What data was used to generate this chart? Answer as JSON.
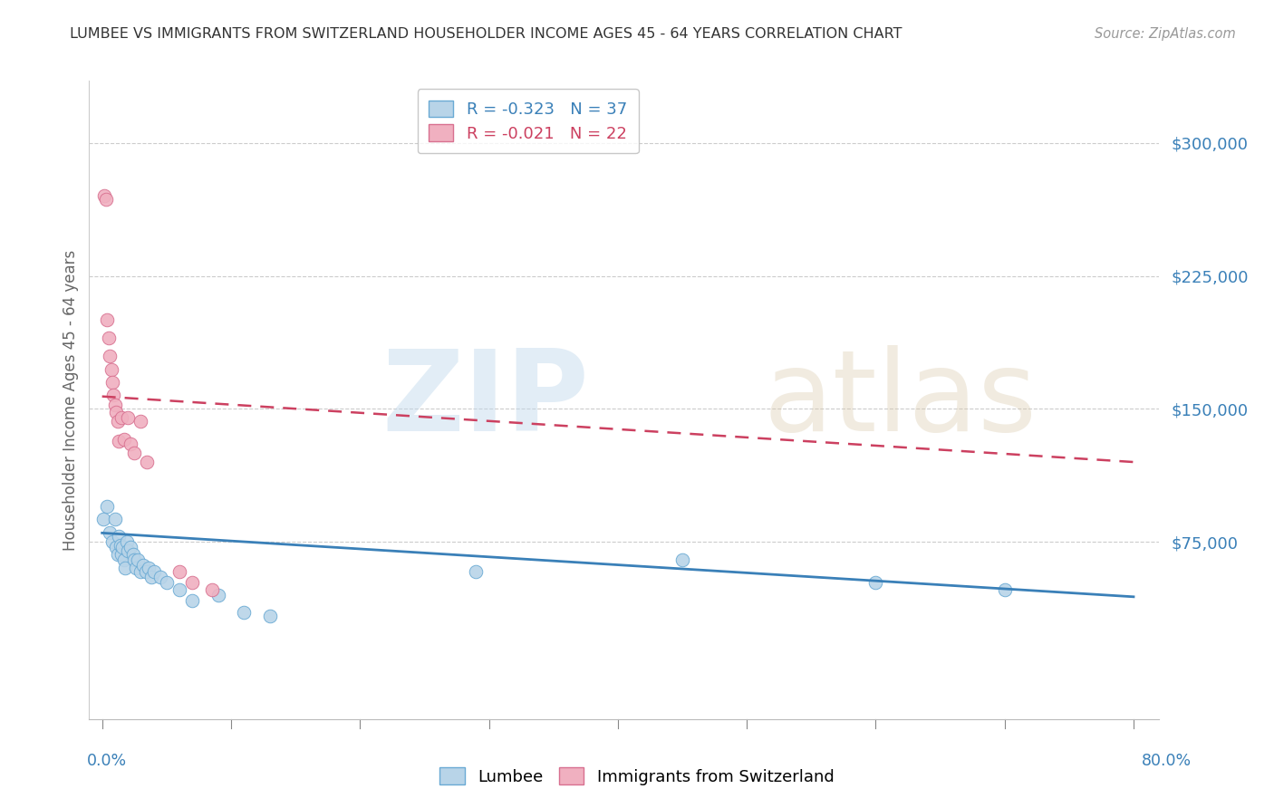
{
  "title": "LUMBEE VS IMMIGRANTS FROM SWITZERLAND HOUSEHOLDER INCOME AGES 45 - 64 YEARS CORRELATION CHART",
  "source": "Source: ZipAtlas.com",
  "ylabel": "Householder Income Ages 45 - 64 years",
  "lumbee_label": "Lumbee",
  "swiss_label": "Immigrants from Switzerland",
  "legend_lumbee": "R = -0.323   N = 37",
  "legend_swiss": "R = -0.021   N = 22",
  "lumbee_color": "#b8d4e8",
  "lumbee_edge_color": "#6aaad4",
  "swiss_color": "#f0b0c0",
  "swiss_edge_color": "#d87090",
  "lumbee_line_color": "#3a80b8",
  "swiss_line_color": "#cc4060",
  "ytick_vals": [
    0,
    75000,
    150000,
    225000,
    300000
  ],
  "ytick_labels": [
    "",
    "$75,000",
    "$150,000",
    "$225,000",
    "$300,000"
  ],
  "ylim": [
    -25000,
    335000
  ],
  "xlim": [
    -0.01,
    0.82
  ],
  "lumbee_x": [
    0.001,
    0.004,
    0.006,
    0.008,
    0.01,
    0.011,
    0.012,
    0.013,
    0.014,
    0.015,
    0.016,
    0.017,
    0.018,
    0.019,
    0.02,
    0.022,
    0.024,
    0.025,
    0.026,
    0.028,
    0.03,
    0.032,
    0.034,
    0.036,
    0.038,
    0.04,
    0.045,
    0.05,
    0.06,
    0.07,
    0.09,
    0.11,
    0.13,
    0.29,
    0.45,
    0.6,
    0.7
  ],
  "lumbee_y": [
    88000,
    95000,
    80000,
    75000,
    88000,
    72000,
    68000,
    78000,
    73000,
    68000,
    72000,
    65000,
    60000,
    75000,
    70000,
    72000,
    68000,
    65000,
    60000,
    65000,
    58000,
    62000,
    58000,
    60000,
    55000,
    58000,
    55000,
    52000,
    48000,
    42000,
    45000,
    35000,
    33000,
    58000,
    65000,
    52000,
    48000
  ],
  "swiss_x": [
    0.002,
    0.003,
    0.004,
    0.005,
    0.006,
    0.007,
    0.008,
    0.009,
    0.01,
    0.011,
    0.012,
    0.013,
    0.015,
    0.017,
    0.02,
    0.022,
    0.025,
    0.03,
    0.035,
    0.06,
    0.07,
    0.085
  ],
  "swiss_y": [
    270000,
    268000,
    200000,
    190000,
    180000,
    172000,
    165000,
    158000,
    152000,
    148000,
    143000,
    132000,
    145000,
    133000,
    145000,
    130000,
    125000,
    143000,
    120000,
    58000,
    52000,
    48000
  ],
  "lumbee_trend_x0": 0.0,
  "lumbee_trend_x1": 0.8,
  "lumbee_trend_y0": 80000,
  "lumbee_trend_y1": 44000,
  "swiss_trend_x0": 0.0,
  "swiss_trend_x1": 0.8,
  "swiss_trend_y0": 157000,
  "swiss_trend_y1": 120000
}
